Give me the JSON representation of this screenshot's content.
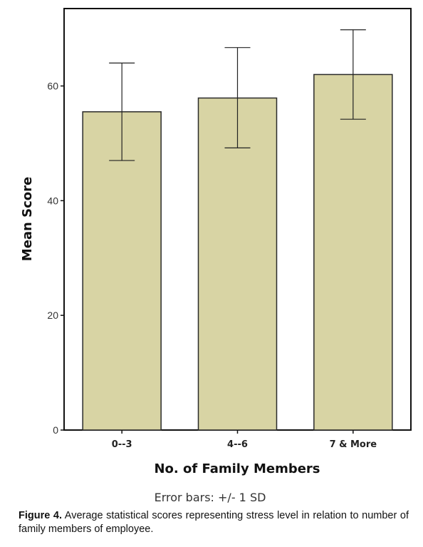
{
  "chart_data": {
    "type": "bar",
    "categories": [
      "0--3",
      "4--6",
      "7 & More"
    ],
    "values": [
      55.5,
      57.9,
      62.0
    ],
    "error_bars": {
      "lower": [
        47.0,
        49.2,
        54.2
      ],
      "upper": [
        64.0,
        66.7,
        69.8
      ]
    },
    "xlabel": "No. of Family Members",
    "ylabel": "Mean Score",
    "yticks": [
      0,
      20,
      40,
      60
    ],
    "ylim": [
      0,
      73.5
    ],
    "note": "Error bars: +/- 1 SD",
    "bar_color": "#d8d4a4",
    "grid": false
  },
  "caption": {
    "label": "Figure 4.",
    "text": " Average statistical scores representing stress level in relation to number of family members of employee."
  }
}
